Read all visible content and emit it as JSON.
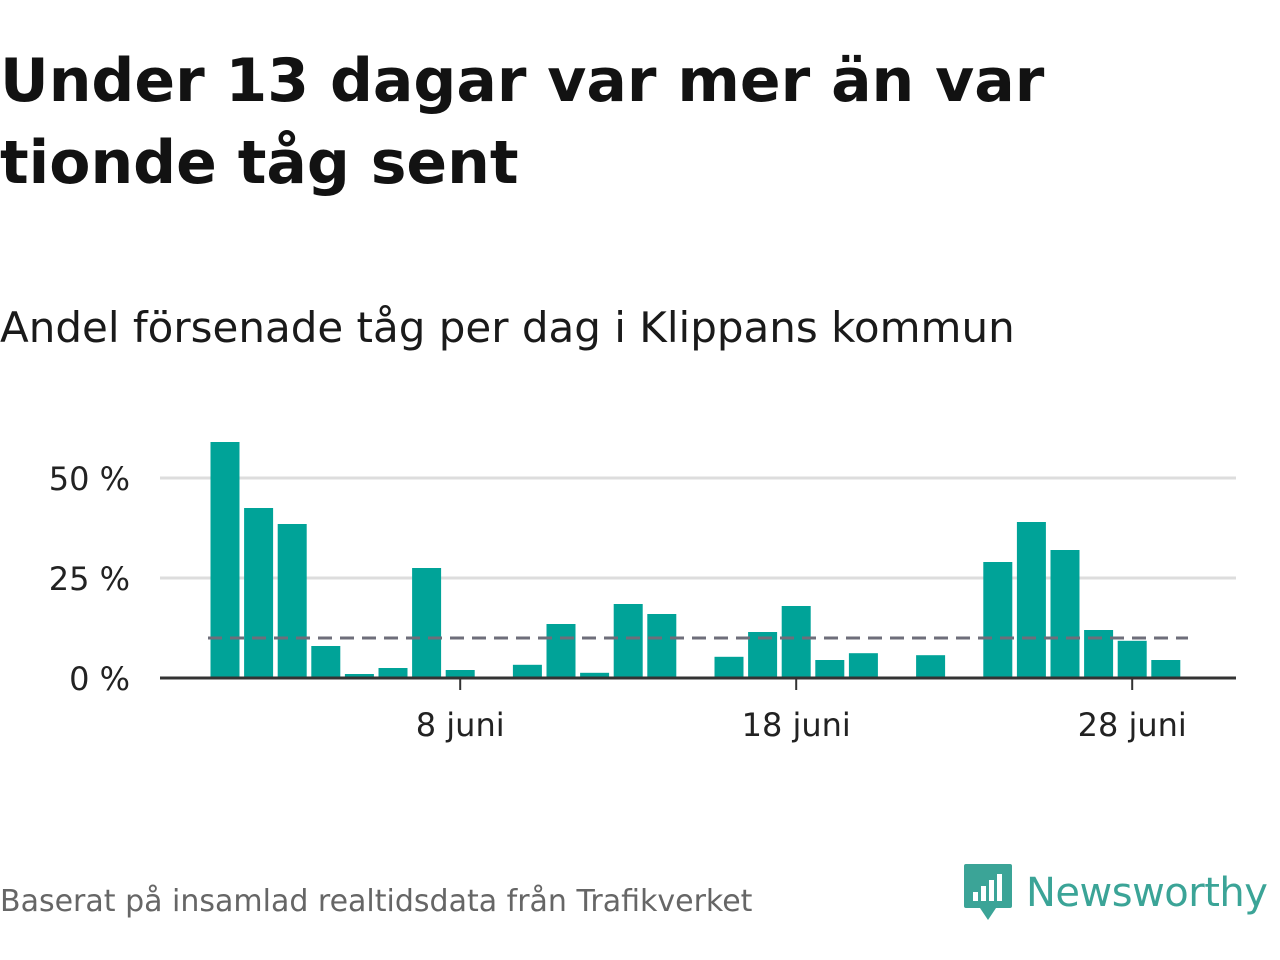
{
  "title": "Under 13 dagar var mer än var tionde tåg sent",
  "subtitle": "Andel försenade tåg per dag i Klippans kommun",
  "footer": "Baserat på insamlad realtidsdata från Trafikverket",
  "brand": {
    "name": "Newsworthy",
    "icon": "newsworthy-logo-icon",
    "color": "#3ba497"
  },
  "colors": {
    "bar": "#00a398",
    "reference_line": "#6e6e7a",
    "grid": "#dddddd",
    "axis": "#333333"
  },
  "chart_data": {
    "type": "bar",
    "xlabel": "",
    "ylabel": "",
    "ylim": [
      0,
      60
    ],
    "yticks": [
      {
        "value": 0,
        "label": "0 %"
      },
      {
        "value": 25,
        "label": "25 %"
      },
      {
        "value": 50,
        "label": "50 %"
      }
    ],
    "xticks": [
      {
        "day": 8,
        "label": "8 juni"
      },
      {
        "day": 18,
        "label": "18 juni"
      },
      {
        "day": 28,
        "label": "28 juni"
      }
    ],
    "reference_value": 10,
    "days": [
      1,
      2,
      3,
      4,
      5,
      6,
      7,
      8,
      9,
      10,
      11,
      12,
      13,
      14,
      15,
      16,
      17,
      18,
      19,
      20,
      21,
      22,
      23,
      24,
      25,
      26,
      27,
      28,
      29,
      30
    ],
    "values": [
      59,
      42.5,
      38.5,
      8,
      1,
      2.5,
      27.5,
      2,
      0,
      3.3,
      13.5,
      1.3,
      18.5,
      16,
      0,
      5.3,
      11.5,
      18,
      4.5,
      6.2,
      0,
      5.7,
      0,
      29,
      39,
      32,
      12,
      9.3,
      4.5,
      null
    ],
    "grid": true,
    "legend": "none"
  }
}
